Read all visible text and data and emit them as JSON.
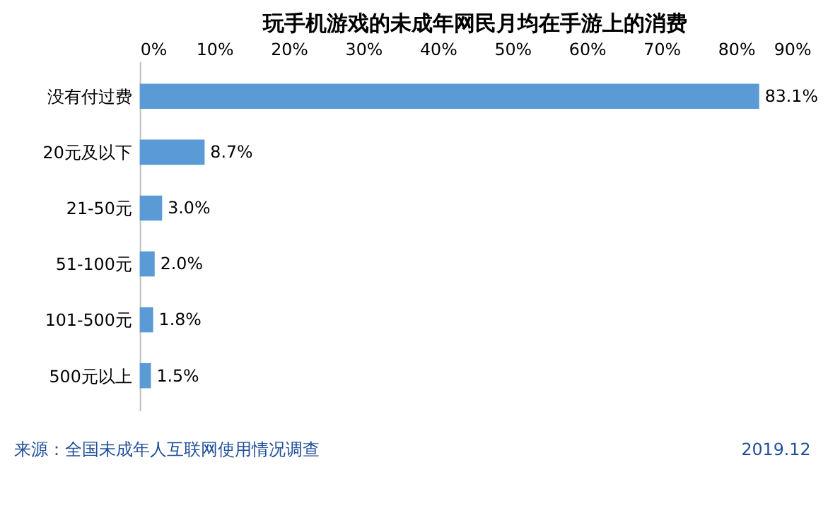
{
  "chart_data": {
    "type": "bar",
    "orientation": "horizontal",
    "title": "玩手机游戏的未成年网民月均在手游上的消费",
    "categories": [
      "没有付过费",
      "20元及以下",
      "21-50元",
      "51-100元",
      "101-500元",
      "500元以上"
    ],
    "values": [
      83.1,
      8.7,
      3.0,
      2.0,
      1.8,
      1.5
    ],
    "value_labels": [
      "83.1%",
      "8.7%",
      "3.0%",
      "2.0%",
      "1.8%",
      "1.5%"
    ],
    "color": "#5b9bd5",
    "xlim": [
      0,
      90
    ],
    "xticks": [
      {
        "value": 0,
        "label": "0%"
      },
      {
        "value": 10,
        "label": "10%"
      },
      {
        "value": 20,
        "label": "20%"
      },
      {
        "value": 30,
        "label": "30%"
      },
      {
        "value": 40,
        "label": "40%"
      },
      {
        "value": 50,
        "label": "50%"
      },
      {
        "value": 60,
        "label": "60%"
      },
      {
        "value": 70,
        "label": "70%"
      },
      {
        "value": 80,
        "label": "80%"
      },
      {
        "value": 90,
        "label": "90%"
      }
    ],
    "grid": false,
    "annotations": [
      "来源：全国未成年人互联网使用情况调查",
      "2019.12"
    ]
  }
}
